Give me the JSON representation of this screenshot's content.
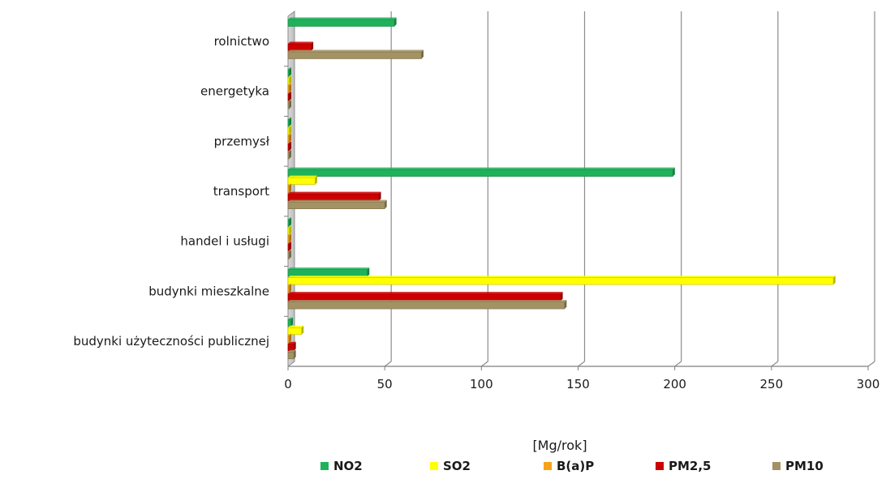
{
  "chart_data": {
    "type": "bar",
    "orientation": "horizontal",
    "categories": [
      "rolnictwo",
      "energetyka",
      "przemysł",
      "transport",
      "handel i usługi",
      "budynki mieszkalne",
      "budynki użyteczności publicznej"
    ],
    "series": [
      {
        "name": "NO2",
        "color": "#1fb25a",
        "values": [
          55,
          0.5,
          0.5,
          199,
          0.5,
          41,
          1.5
        ]
      },
      {
        "name": "SO2",
        "color": "#ffff00",
        "values": [
          0,
          0.5,
          0.5,
          14,
          0.5,
          282,
          7
        ]
      },
      {
        "name": "B(a)P",
        "color": "#f7a21b",
        "values": [
          0,
          0.2,
          0.2,
          0.2,
          0.2,
          0.3,
          0.1
        ]
      },
      {
        "name": "PM2,5",
        "color": "#cc0000",
        "values": [
          12,
          0.5,
          0.5,
          47,
          0.5,
          141,
          3
        ]
      },
      {
        "name": "PM10",
        "color": "#a39264",
        "values": [
          69,
          0.5,
          0.5,
          50,
          0.5,
          143,
          3
        ]
      }
    ],
    "xlabel": "[Mg/rok]",
    "xlim": [
      0,
      300
    ],
    "xticks": [
      "0",
      "50",
      "100",
      "150",
      "200",
      "250",
      "300"
    ],
    "grid": "vertical",
    "legend_position": "bottom"
  }
}
